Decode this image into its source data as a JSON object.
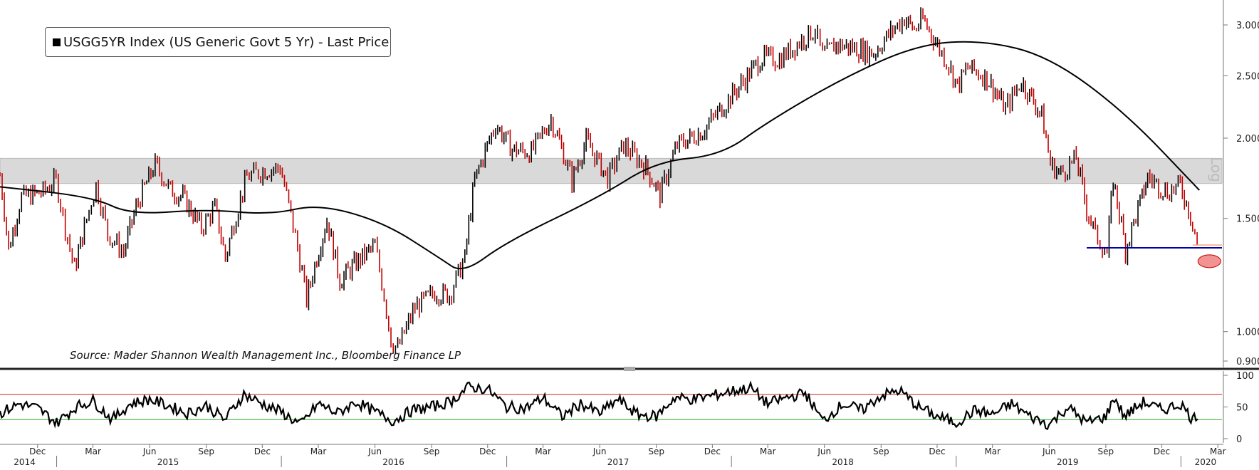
{
  "chart_data": [
    {
      "type": "line",
      "legend": "USGG5YR Index (US Generic Govt 5 Yr) - Last Price",
      "source": "Source: Mader Shannon Wealth Management Inc., Bloomberg Finance LP",
      "scale_label": "Log",
      "y_scale": "log",
      "ylim": [
        0.85,
        3.2
      ],
      "y_ticks": [
        "3.0000",
        "2.5000",
        "2.0000",
        "1.5000",
        "1.0000",
        "0.9000"
      ],
      "y_tick_values": [
        3.0,
        2.5,
        2.0,
        1.5,
        1.0,
        0.9
      ],
      "x_range": [
        "2014-10-01",
        "2020-03-10"
      ],
      "colors": {
        "price_down": "#c00000",
        "price_up": "#000000",
        "moving_average": "#000000",
        "band": "#d9d9d9",
        "support_line": "#0000aa",
        "highlight": "#f08080"
      },
      "band": [
        1.7,
        1.86
      ],
      "support_level": 1.35,
      "highlight_point": {
        "x": "2020-01-31",
        "y": 1.32
      },
      "series": [
        {
          "name": "USGG5YR Index (US Generic Govt 5 Yr) - Last Price",
          "points": [
            [
              "2014-10-01",
              1.75
            ],
            [
              "2014-10-15",
              1.34
            ],
            [
              "2014-11-05",
              1.62
            ],
            [
              "2014-11-20",
              1.63
            ],
            [
              "2014-12-10",
              1.65
            ],
            [
              "2014-12-31",
              1.72
            ],
            [
              "2015-01-15",
              1.45
            ],
            [
              "2015-01-30",
              1.25
            ],
            [
              "2015-02-15",
              1.45
            ],
            [
              "2015-03-06",
              1.69
            ],
            [
              "2015-03-25",
              1.42
            ],
            [
              "2015-04-20",
              1.33
            ],
            [
              "2015-05-10",
              1.56
            ],
            [
              "2015-06-10",
              1.82
            ],
            [
              "2015-07-05",
              1.66
            ],
            [
              "2015-07-25",
              1.62
            ],
            [
              "2015-08-24",
              1.45
            ],
            [
              "2015-09-15",
              1.56
            ],
            [
              "2015-10-02",
              1.3
            ],
            [
              "2015-11-06",
              1.74
            ],
            [
              "2015-12-02",
              1.78
            ],
            [
              "2015-12-30",
              1.8
            ],
            [
              "2016-01-20",
              1.46
            ],
            [
              "2016-02-11",
              1.12
            ],
            [
              "2016-03-15",
              1.49
            ],
            [
              "2016-04-05",
              1.2
            ],
            [
              "2016-05-05",
              1.29
            ],
            [
              "2016-06-01",
              1.36
            ],
            [
              "2016-06-27",
              0.97
            ],
            [
              "2016-07-08",
              0.94
            ],
            [
              "2016-08-05",
              1.09
            ],
            [
              "2016-09-06",
              1.15
            ],
            [
              "2016-09-30",
              1.14
            ],
            [
              "2016-10-25",
              1.3
            ],
            [
              "2016-11-10",
              1.72
            ],
            [
              "2016-12-14",
              2.1
            ],
            [
              "2017-01-10",
              1.92
            ],
            [
              "2017-02-10",
              1.9
            ],
            [
              "2017-03-14",
              2.14
            ],
            [
              "2017-04-17",
              1.72
            ],
            [
              "2017-05-10",
              1.98
            ],
            [
              "2017-06-14",
              1.73
            ],
            [
              "2017-07-10",
              1.95
            ],
            [
              "2017-08-15",
              1.8
            ],
            [
              "2017-09-07",
              1.63
            ],
            [
              "2017-10-05",
              1.95
            ],
            [
              "2017-11-15",
              2.05
            ],
            [
              "2017-12-20",
              2.25
            ],
            [
              "2018-01-20",
              2.45
            ],
            [
              "2018-02-20",
              2.67
            ],
            [
              "2018-03-20",
              2.65
            ],
            [
              "2018-04-25",
              2.84
            ],
            [
              "2018-05-17",
              2.95
            ],
            [
              "2018-05-29",
              2.68
            ],
            [
              "2018-06-20",
              2.8
            ],
            [
              "2018-07-20",
              2.76
            ],
            [
              "2018-08-20",
              2.71
            ],
            [
              "2018-09-20",
              2.95
            ],
            [
              "2018-10-09",
              3.07
            ],
            [
              "2018-10-25",
              2.95
            ],
            [
              "2018-11-08",
              3.06
            ],
            [
              "2018-12-05",
              2.75
            ],
            [
              "2018-12-20",
              2.6
            ],
            [
              "2019-01-03",
              2.41
            ],
            [
              "2019-01-20",
              2.58
            ],
            [
              "2019-02-20",
              2.48
            ],
            [
              "2019-03-22",
              2.22
            ],
            [
              "2019-04-17",
              2.45
            ],
            [
              "2019-05-20",
              2.17
            ],
            [
              "2019-06-03",
              1.82
            ],
            [
              "2019-06-20",
              1.76
            ],
            [
              "2019-07-15",
              1.86
            ],
            [
              "2019-08-01",
              1.55
            ],
            [
              "2019-08-15",
              1.42
            ],
            [
              "2019-09-03",
              1.32
            ],
            [
              "2019-09-13",
              1.72
            ],
            [
              "2019-10-03",
              1.34
            ],
            [
              "2019-10-30",
              1.62
            ],
            [
              "2019-11-08",
              1.74
            ],
            [
              "2019-12-10",
              1.65
            ],
            [
              "2019-12-31",
              1.69
            ],
            [
              "2020-01-20",
              1.48
            ],
            [
              "2020-01-31",
              1.32
            ]
          ]
        },
        {
          "name": "",
          "points": [
            [
              "2014-10-01",
              1.68
            ],
            [
              "2015-03-01",
              1.62
            ],
            [
              "2015-05-01",
              1.52
            ],
            [
              "2015-09-01",
              1.55
            ],
            [
              "2015-12-15",
              1.52
            ],
            [
              "2016-03-01",
              1.58
            ],
            [
              "2016-06-15",
              1.48
            ],
            [
              "2016-09-15",
              1.3
            ],
            [
              "2016-10-22",
              1.23
            ],
            [
              "2017-01-01",
              1.38
            ],
            [
              "2017-06-01",
              1.62
            ],
            [
              "2017-09-01",
              1.84
            ],
            [
              "2017-12-15",
              1.88
            ],
            [
              "2018-03-01",
              2.12
            ],
            [
              "2018-07-01",
              2.48
            ],
            [
              "2018-11-01",
              2.8
            ],
            [
              "2019-02-15",
              2.84
            ],
            [
              "2019-06-01",
              2.68
            ],
            [
              "2019-10-01",
              2.2
            ],
            [
              "2020-01-31",
              1.66
            ]
          ]
        }
      ]
    },
    {
      "type": "line",
      "ylim": [
        0,
        100
      ],
      "y_ticks": [
        "100",
        "50",
        "0"
      ],
      "y_tick_values": [
        100,
        50,
        0
      ],
      "reference_lines": [
        {
          "value": 70,
          "color": "#d43c3c"
        },
        {
          "value": 30,
          "color": "#3cba3c"
        }
      ],
      "x_tick_labels": [
        "Dec",
        "Mar",
        "Jun",
        "Sep",
        "Dec",
        "Mar",
        "Jun",
        "Sep",
        "Dec",
        "Mar",
        "Jun",
        "Sep",
        "Dec",
        "Mar",
        "Jun",
        "Sep",
        "Dec",
        "Mar",
        "Jun",
        "Sep",
        "Dec",
        "Mar"
      ],
      "x_tick_dates": [
        "2014-12-01",
        "2015-03-01",
        "2015-06-01",
        "2015-09-01",
        "2015-12-01",
        "2016-03-01",
        "2016-06-01",
        "2016-09-01",
        "2016-12-01",
        "2017-03-01",
        "2017-06-01",
        "2017-09-01",
        "2017-12-01",
        "2018-03-01",
        "2018-06-01",
        "2018-09-01",
        "2018-12-01",
        "2019-03-01",
        "2019-06-01",
        "2019-09-01",
        "2019-12-01",
        "2020-03-01"
      ],
      "year_labels": [
        "2014",
        "2015",
        "2016",
        "2017",
        "2018",
        "2019",
        "2020"
      ],
      "year_label_dates": [
        "2014-11-10",
        "2015-07-01",
        "2016-07-01",
        "2017-07-01",
        "2018-07-01",
        "2019-07-01",
        "2020-02-10"
      ],
      "year_boundaries": [
        "2015-01-01",
        "2016-01-01",
        "2017-01-01",
        "2018-01-01",
        "2019-01-01",
        "2020-01-01"
      ],
      "series": [
        {
          "name": "",
          "points": [
            [
              "2014-10-01",
              40
            ],
            [
              "2014-11-01",
              55
            ],
            [
              "2014-12-01",
              48
            ],
            [
              "2015-01-01",
              25
            ],
            [
              "2015-02-01",
              50
            ],
            [
              "2015-03-01",
              60
            ],
            [
              "2015-04-01",
              30
            ],
            [
              "2015-05-01",
              55
            ],
            [
              "2015-06-01",
              62
            ],
            [
              "2015-07-01",
              52
            ],
            [
              "2015-08-01",
              40
            ],
            [
              "2015-09-01",
              52
            ],
            [
              "2015-10-01",
              30
            ],
            [
              "2015-11-01",
              70
            ],
            [
              "2015-12-01",
              55
            ],
            [
              "2016-01-01",
              42
            ],
            [
              "2016-02-01",
              22
            ],
            [
              "2016-03-01",
              55
            ],
            [
              "2016-04-01",
              40
            ],
            [
              "2016-05-01",
              58
            ],
            [
              "2016-06-01",
              42
            ],
            [
              "2016-07-01",
              28
            ],
            [
              "2016-08-01",
              45
            ],
            [
              "2016-09-01",
              50
            ],
            [
              "2016-10-01",
              58
            ],
            [
              "2016-11-01",
              82
            ],
            [
              "2016-12-01",
              78
            ],
            [
              "2017-01-01",
              50
            ],
            [
              "2017-02-01",
              48
            ],
            [
              "2017-03-01",
              65
            ],
            [
              "2017-04-01",
              35
            ],
            [
              "2017-05-01",
              55
            ],
            [
              "2017-06-01",
              40
            ],
            [
              "2017-07-01",
              62
            ],
            [
              "2017-08-01",
              38
            ],
            [
              "2017-09-01",
              35
            ],
            [
              "2017-10-01",
              65
            ],
            [
              "2017-11-01",
              62
            ],
            [
              "2017-12-01",
              68
            ],
            [
              "2018-01-01",
              75
            ],
            [
              "2018-02-01",
              80
            ],
            [
              "2018-03-01",
              55
            ],
            [
              "2018-04-01",
              65
            ],
            [
              "2018-05-01",
              72
            ],
            [
              "2018-05-29",
              28
            ],
            [
              "2018-07-01",
              55
            ],
            [
              "2018-08-01",
              45
            ],
            [
              "2018-09-01",
              68
            ],
            [
              "2018-10-01",
              76
            ],
            [
              "2018-11-01",
              50
            ],
            [
              "2018-12-01",
              35
            ],
            [
              "2019-01-01",
              25
            ],
            [
              "2019-02-01",
              45
            ],
            [
              "2019-03-01",
              38
            ],
            [
              "2019-04-01",
              55
            ],
            [
              "2019-05-01",
              35
            ],
            [
              "2019-06-01",
              22
            ],
            [
              "2019-07-01",
              50
            ],
            [
              "2019-08-01",
              25
            ],
            [
              "2019-09-01",
              35
            ],
            [
              "2019-09-15",
              65
            ],
            [
              "2019-10-01",
              35
            ],
            [
              "2019-11-01",
              58
            ],
            [
              "2019-12-01",
              45
            ],
            [
              "2020-01-01",
              55
            ],
            [
              "2020-01-20",
              30
            ],
            [
              "2020-01-31",
              42
            ]
          ]
        }
      ]
    }
  ]
}
